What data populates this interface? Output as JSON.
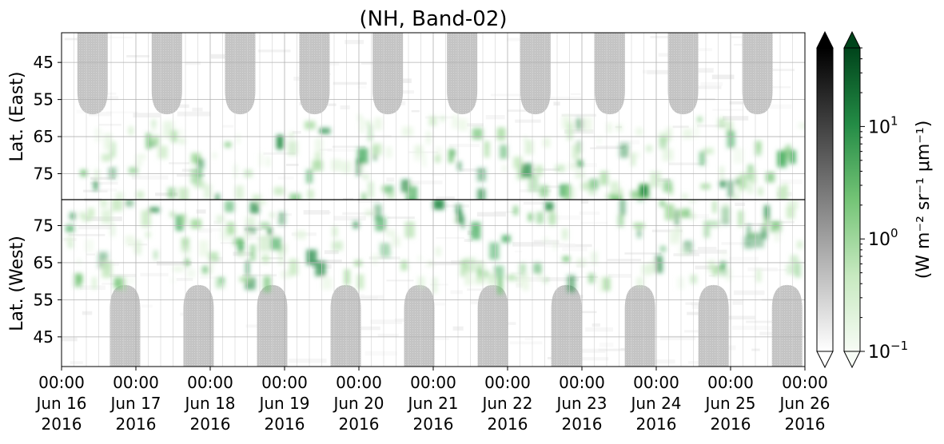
{
  "chart_data": {
    "type": "heatmap",
    "title": "(NH, Band-02)",
    "x_ticks": [
      {
        "value": "2016-06-16T00:00",
        "lines": [
          "00:00",
          "Jun 16",
          "2016"
        ]
      },
      {
        "value": "2016-06-17T00:00",
        "lines": [
          "00:00",
          "Jun 17",
          "2016"
        ]
      },
      {
        "value": "2016-06-18T00:00",
        "lines": [
          "00:00",
          "Jun 18",
          "2016"
        ]
      },
      {
        "value": "2016-06-19T00:00",
        "lines": [
          "00:00",
          "Jun 19",
          "2016"
        ]
      },
      {
        "value": "2016-06-20T00:00",
        "lines": [
          "00:00",
          "Jun 20",
          "2016"
        ]
      },
      {
        "value": "2016-06-21T00:00",
        "lines": [
          "00:00",
          "Jun 21",
          "2016"
        ]
      },
      {
        "value": "2016-06-22T00:00",
        "lines": [
          "00:00",
          "Jun 22",
          "2016"
        ]
      },
      {
        "value": "2016-06-23T00:00",
        "lines": [
          "00:00",
          "Jun 23",
          "2016"
        ]
      },
      {
        "value": "2016-06-24T00:00",
        "lines": [
          "00:00",
          "Jun 24",
          "2016"
        ]
      },
      {
        "value": "2016-06-25T00:00",
        "lines": [
          "00:00",
          "Jun 25",
          "2016"
        ]
      },
      {
        "value": "2016-06-26T00:00",
        "lines": [
          "00:00",
          "Jun 26",
          "2016"
        ]
      }
    ],
    "x_range": [
      "2016-06-16T00:00",
      "2016-06-26T00:00"
    ],
    "panels": [
      {
        "ylabel": "Lat. (East)",
        "yticks": [
          "45",
          "55",
          "65",
          "75"
        ],
        "ylim": [
          37,
          82
        ],
        "orientation": "equatorward-up"
      },
      {
        "ylabel": "Lat. (West)",
        "yticks": [
          "75",
          "65",
          "55",
          "45"
        ],
        "ylim": [
          82,
          37
        ],
        "orientation": "equatorward-down"
      }
    ],
    "grid": true,
    "colorbars": [
      {
        "cmap": "Greys",
        "extend": "both",
        "colors": [
          "#ffffff",
          "#000000"
        ]
      },
      {
        "cmap": "Greens",
        "extend": "both",
        "colors": [
          "#f7fcf5",
          "#00441b"
        ],
        "scale": "log",
        "range": [
          0.1,
          50
        ],
        "ticks": [
          {
            "value": 0.1,
            "base": "10",
            "exp": "−1"
          },
          {
            "value": 1,
            "base": "10",
            "exp": "0"
          },
          {
            "value": 10,
            "base": "10",
            "exp": "1"
          }
        ],
        "label": "(W m⁻² sr⁻¹ μm⁻¹)"
      }
    ],
    "features": {
      "night_gaps_east_centers": [
        "2016-06-16T10:00",
        "2016-06-17T10:00",
        "2016-06-18T09:40",
        "2016-06-19T09:40",
        "2016-06-20T09:20",
        "2016-06-21T09:20",
        "2016-06-22T09:00",
        "2016-06-23T09:00",
        "2016-06-24T08:40",
        "2016-06-25T08:40"
      ],
      "night_gaps_west_centers": [
        "2016-06-16T20:30",
        "2016-06-17T20:15",
        "2016-06-18T20:00",
        "2016-06-19T19:45",
        "2016-06-20T19:30",
        "2016-06-21T19:15",
        "2016-06-22T19:00",
        "2016-06-23T18:45",
        "2016-06-24T18:30",
        "2016-06-25T18:15"
      ],
      "night_gap_edge_lat": 59,
      "aurora_band_lat": [
        60,
        82
      ]
    }
  }
}
